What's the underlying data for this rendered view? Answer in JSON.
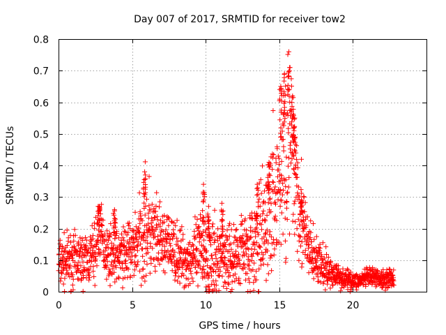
{
  "chart_data": {
    "type": "scatter",
    "title": "Day 007 of 2017, SRMTID for receiver tow2",
    "xlabel": "GPS time / hours",
    "ylabel": "SRMTID / TECUs",
    "xlim": [
      0,
      25
    ],
    "ylim": [
      0,
      0.8
    ],
    "xticks": [
      0,
      5,
      10,
      15,
      20
    ],
    "xtick_labels": [
      "0",
      "5",
      "10",
      "15",
      "20"
    ],
    "yticks": [
      0,
      0.1,
      0.2,
      0.3,
      0.4,
      0.5,
      0.6,
      0.7,
      0.8
    ],
    "ytick_labels": [
      "0",
      "0.1",
      "0.2",
      "0.3",
      "0.4",
      "0.5",
      "0.6",
      "0.7",
      "0.8"
    ],
    "grid": true,
    "marker": "+",
    "marker_color": "#ff0000",
    "x_range_of_data": [
      0,
      22.8
    ],
    "trend": {
      "x": [
        0,
        1,
        2,
        2.5,
        2.8,
        3.2,
        4,
        5,
        5.6,
        6,
        6.5,
        7.5,
        8.5,
        9.5,
        9.8,
        10.5,
        11,
        11.8,
        12.5,
        13.2,
        13.8,
        14.2,
        14.6,
        15,
        15.4,
        15.7,
        16,
        16.3,
        16.6,
        17,
        17.5,
        18,
        18.5,
        19,
        19.5,
        20,
        20.5,
        21,
        21.5,
        22,
        22.5,
        22.8
      ],
      "y": [
        0.09,
        0.1,
        0.1,
        0.13,
        0.2,
        0.13,
        0.11,
        0.13,
        0.18,
        0.2,
        0.16,
        0.15,
        0.1,
        0.11,
        0.14,
        0.08,
        0.12,
        0.1,
        0.15,
        0.13,
        0.17,
        0.23,
        0.28,
        0.35,
        0.4,
        0.45,
        0.4,
        0.32,
        0.2,
        0.13,
        0.1,
        0.07,
        0.06,
        0.05,
        0.04,
        0.035,
        0.035,
        0.045,
        0.045,
        0.04,
        0.045,
        0.045
      ]
    },
    "spread": {
      "x": [
        0,
        2,
        2.6,
        3,
        4,
        5.5,
        6,
        7,
        9,
        10,
        11,
        13,
        14,
        15,
        15.7,
        16.3,
        17,
        18,
        19,
        20,
        22.8
      ],
      "y": [
        0.04,
        0.04,
        0.05,
        0.04,
        0.04,
        0.06,
        0.09,
        0.05,
        0.04,
        0.08,
        0.05,
        0.06,
        0.09,
        0.13,
        0.16,
        0.1,
        0.05,
        0.03,
        0.018,
        0.013,
        0.015
      ]
    },
    "spikes": [
      {
        "x": 2.75,
        "y": 0.27
      },
      {
        "x": 3.8,
        "y": 0.26
      },
      {
        "x": 5.85,
        "y": 0.38
      },
      {
        "x": 9.85,
        "y": 0.34
      },
      {
        "x": 10.2,
        "y": 0.27
      },
      {
        "x": 11.1,
        "y": 0.28
      },
      {
        "x": 13.5,
        "y": 0.34
      },
      {
        "x": 14.3,
        "y": 0.41
      },
      {
        "x": 15.1,
        "y": 0.65
      },
      {
        "x": 15.35,
        "y": 0.69
      },
      {
        "x": 15.65,
        "y": 0.76
      },
      {
        "x": 15.9,
        "y": 0.62
      },
      {
        "x": 16.05,
        "y": 0.55
      },
      {
        "x": 16.5,
        "y": 0.29
      }
    ]
  }
}
